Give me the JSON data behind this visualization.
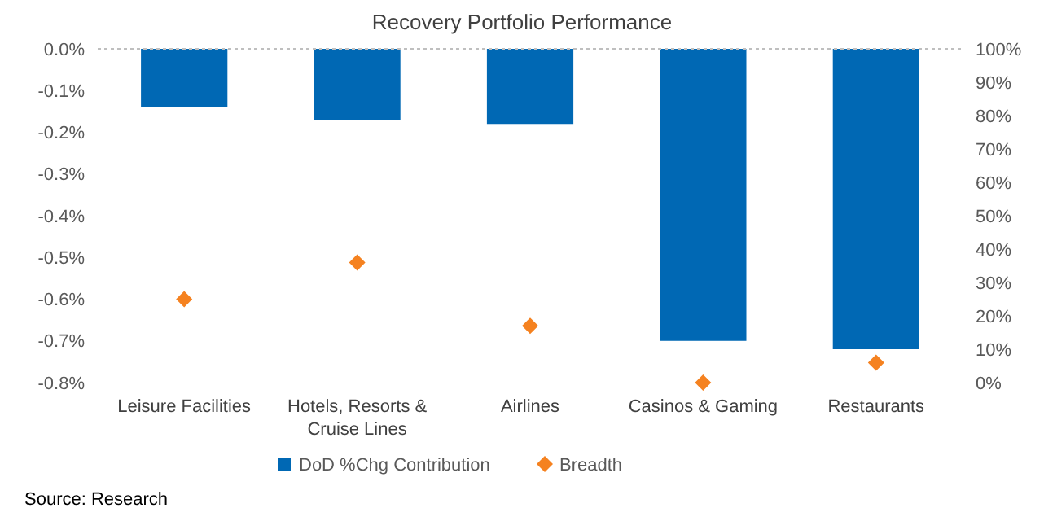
{
  "chart_data": {
    "type": "bar",
    "title": "Recovery Portfolio Performance",
    "categories": [
      "Leisure Facilities",
      "Hotels, Resorts & Cruise Lines",
      "Airlines",
      "Casinos & Gaming",
      "Restaurants"
    ],
    "series": [
      {
        "name": "DoD %Chg Contribution",
        "color": "#0068b4",
        "values": [
          -0.14,
          -0.17,
          -0.18,
          -0.7,
          -0.72
        ]
      },
      {
        "name": "Breadth",
        "type": "scatter",
        "axis": "y2",
        "marker": "diamond",
        "color": "#f58220",
        "values": [
          25,
          36,
          17,
          0,
          6
        ]
      }
    ],
    "ylim": [
      -0.8,
      0
    ],
    "yticks": [
      {
        "value": 0,
        "label": "0.0%"
      },
      {
        "value": -0.1,
        "label": "-0.1%"
      },
      {
        "value": -0.2,
        "label": "-0.2%"
      },
      {
        "value": -0.3,
        "label": "-0.3%"
      },
      {
        "value": -0.4,
        "label": "-0.4%"
      },
      {
        "value": -0.5,
        "label": "-0.5%"
      },
      {
        "value": -0.6,
        "label": "-0.6%"
      },
      {
        "value": -0.7,
        "label": "-0.7%"
      },
      {
        "value": -0.8,
        "label": "-0.8%"
      }
    ],
    "y2lim": [
      0,
      100
    ],
    "y2ticks": [
      {
        "value": 0,
        "label": "0%"
      },
      {
        "value": 10,
        "label": "10%"
      },
      {
        "value": 20,
        "label": "20%"
      },
      {
        "value": 30,
        "label": "30%"
      },
      {
        "value": 40,
        "label": "40%"
      },
      {
        "value": 50,
        "label": "50%"
      },
      {
        "value": 60,
        "label": "60%"
      },
      {
        "value": 70,
        "label": "70%"
      },
      {
        "value": 80,
        "label": "80%"
      },
      {
        "value": 90,
        "label": "90%"
      },
      {
        "value": 100,
        "label": "100%"
      }
    ],
    "legend": "bottom",
    "annotations": [
      "Source: Research"
    ]
  }
}
